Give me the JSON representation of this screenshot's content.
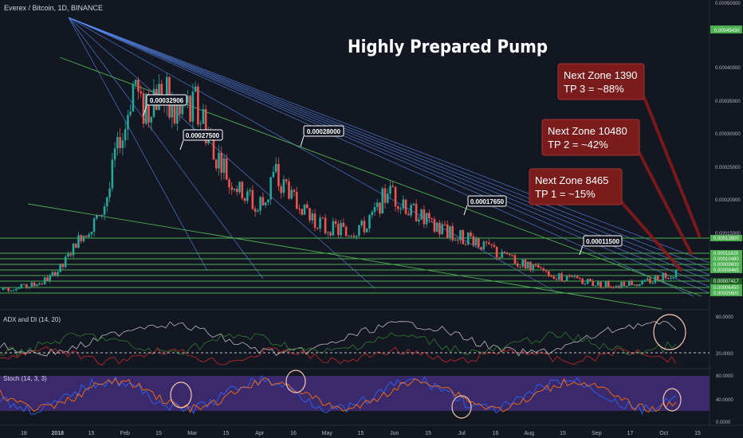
{
  "header": {
    "symbol_line": "Everex / Bitcoin, 1D, BINANCE",
    "idea_title": "Highly Prepared Pump"
  },
  "callouts": [
    {
      "text": "0.00032906"
    },
    {
      "text": "0.00027500"
    },
    {
      "text": "0.00028000"
    },
    {
      "text": "0.00017650"
    },
    {
      "text": "0.00011500"
    }
  ],
  "targets": [
    {
      "line1": "Next Zone 1390",
      "line2": "TP 3 = ~88%"
    },
    {
      "line1": "Next Zone 10480",
      "line2": "TP 2 = ~42%"
    },
    {
      "line1": "Next Zone 8465",
      "line2": "TP 1 = ~15%"
    }
  ],
  "price_axis": {
    "ticks": [
      "0.00050000",
      "0.00040000",
      "0.00035000",
      "0.00030000",
      "0.00025000",
      "0.00020000",
      "0.00015000"
    ],
    "current_badge": "0.00045430",
    "zone_badges": [
      {
        "text": "0.00013900",
        "color": "#4caf50"
      },
      {
        "text": "0.00011620",
        "color": "#4caf50"
      },
      {
        "text": "0.00010480",
        "color": "#4caf50"
      },
      {
        "text": "0.00009600",
        "color": "#4caf50"
      },
      {
        "text": "0.00008465",
        "color": "#4caf50"
      },
      {
        "text": "0.00007417",
        "color": "#1b5e20"
      },
      {
        "text": "0.00006450",
        "color": "#4caf50"
      },
      {
        "text": "0.00005600",
        "color": "#4caf50"
      }
    ]
  },
  "adx_panel": {
    "label": "ADX and DI (14, 20)",
    "ticks": [
      "60.0000",
      "20.0000"
    ]
  },
  "stoch_panel": {
    "label": "Stoch (14, 3, 3)",
    "ticks": [
      "80.0000",
      "40.0000",
      "0.0000"
    ]
  },
  "time_axis": [
    "18",
    "2018",
    "15",
    "Feb",
    "15",
    "Mar",
    "15",
    "Apr",
    "16",
    "May",
    "15",
    "Jun",
    "15",
    "Jul",
    "16",
    "Aug",
    "15",
    "Sep",
    "17",
    "Oct",
    "15"
  ],
  "colors": {
    "up": "#26a69a",
    "down": "#ef5350",
    "zone": "#4caf50",
    "fan": "#5b8ff9",
    "target_box": "#7a1c1c",
    "stoch_band": "#3b2a6b"
  },
  "chart_data": {
    "type": "candlestick",
    "series": [
      {
        "name": "Everex / Bitcoin",
        "values": [
          5e-05,
          5.5e-05,
          6e-05,
          7e-05,
          0.0001,
          0.00014,
          0.00016,
          0.00026,
          0.00036,
          0.00033,
          0.00037,
          0.00031,
          0.00035,
          0.00027,
          0.00023,
          0.0002,
          0.00018,
          0.00023,
          0.0002,
          0.00017,
          0.00015,
          0.000145,
          0.00014,
          0.00016,
          0.00021,
          0.00018,
          0.00017,
          0.000145,
          0.00014,
          0.00013,
          0.00012,
          0.000105,
          9.5e-05,
          8.5e-05,
          7.5e-05,
          7e-05,
          6.5e-05,
          6e-05,
          5.8e-05,
          6e-05,
          6.2e-05,
          7e-05,
          7.5e-05
        ]
      }
    ]
  }
}
